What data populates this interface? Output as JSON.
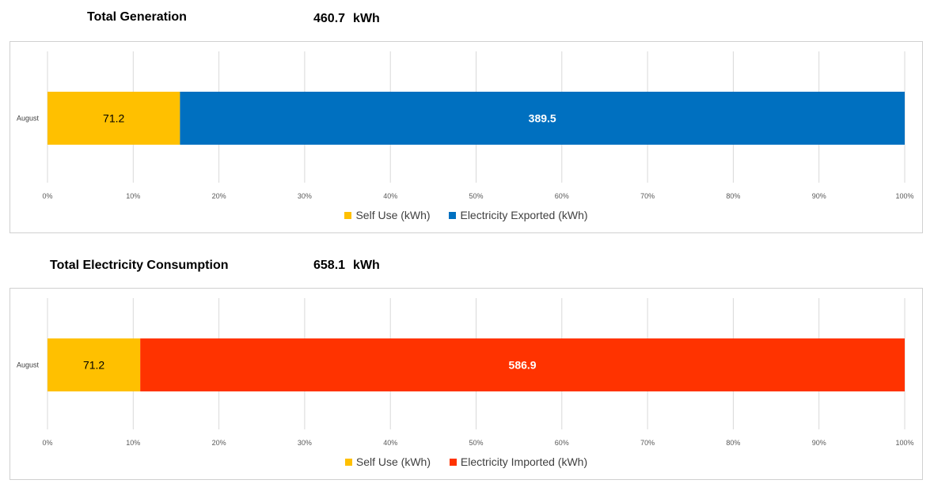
{
  "sections": [
    {
      "title": "Total Generation",
      "total_value": "460.7",
      "total_unit": "kWh"
    },
    {
      "title": "Total Electricity Consumption",
      "total_value": "658.1",
      "total_unit": "kWh"
    }
  ],
  "chart_data": [
    {
      "type": "bar",
      "orientation": "horizontal",
      "stacked": "percent",
      "categories": [
        "August"
      ],
      "series": [
        {
          "name": "Self Use (kWh)",
          "values": [
            71.2
          ],
          "color": "#FFC000"
        },
        {
          "name": "Electricity Exported (kWh)",
          "values": [
            389.5
          ],
          "color": "#0070C0"
        }
      ],
      "data_labels": [
        "71.2",
        "389.5"
      ],
      "x_ticks": [
        "0%",
        "10%",
        "20%",
        "30%",
        "40%",
        "50%",
        "60%",
        "70%",
        "80%",
        "90%",
        "100%"
      ],
      "xlim": [
        0,
        100
      ],
      "grid": true,
      "legend": "bottom"
    },
    {
      "type": "bar",
      "orientation": "horizontal",
      "stacked": "percent",
      "categories": [
        "August"
      ],
      "series": [
        {
          "name": "Self Use (kWh)",
          "values": [
            71.2
          ],
          "color": "#FFC000"
        },
        {
          "name": "Electricity Imported (kWh)",
          "values": [
            586.9
          ],
          "color": "#FF3300"
        }
      ],
      "data_labels": [
        "71.2",
        "586.9"
      ],
      "x_ticks": [
        "0%",
        "10%",
        "20%",
        "30%",
        "40%",
        "50%",
        "60%",
        "70%",
        "80%",
        "90%",
        "100%"
      ],
      "xlim": [
        0,
        100
      ],
      "grid": true,
      "legend": "bottom"
    }
  ]
}
